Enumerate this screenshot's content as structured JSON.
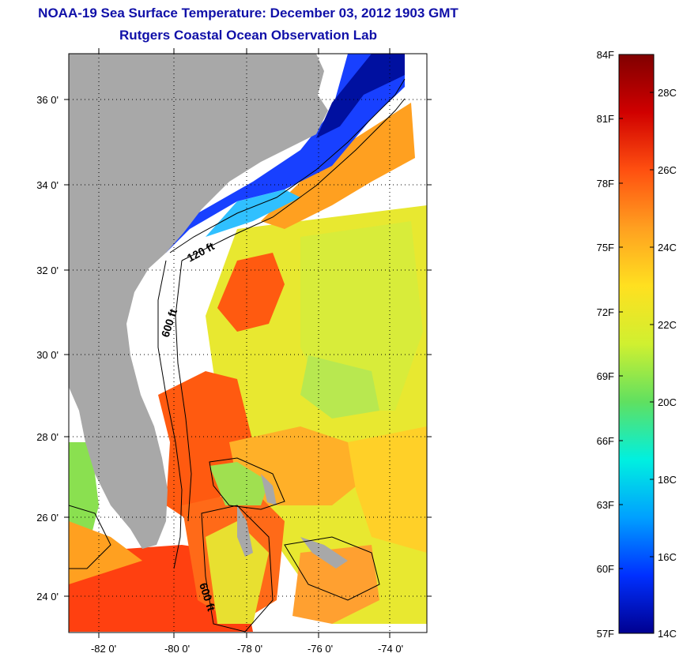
{
  "title": {
    "line1": "NOAA-19 Sea Surface Temperature:  December 03, 2012 1903 GMT",
    "line2": "Rutgers Coastal Ocean Observation Lab"
  },
  "map": {
    "lat_labels": [
      "36 0'",
      "34 0'",
      "32 0'",
      "30 0'",
      "28 0'",
      "26 0'",
      "24 0'"
    ],
    "lon_labels": [
      "-82 0'",
      "-80 0'",
      "-78 0'",
      "-76 0'",
      "-74 0'"
    ],
    "lat_values": [
      36,
      34,
      32,
      30,
      28,
      26,
      24
    ],
    "lon_values": [
      -82,
      -80,
      -78,
      -76,
      -74
    ],
    "lat_range": [
      23,
      37
    ],
    "lon_range": [
      -83,
      -73
    ],
    "contour_labels": [
      "120 ft",
      "600 ft",
      "600 ft"
    ],
    "land_color": "#a8a8a8",
    "cloud_color": "#ffffff"
  },
  "colorbar": {
    "fahrenheit_labels": [
      "84F",
      "81F",
      "78F",
      "75F",
      "72F",
      "69F",
      "66F",
      "63F",
      "60F",
      "57F"
    ],
    "celsius_labels": [
      "28C",
      "26C",
      "24C",
      "22C",
      "20C",
      "18C",
      "16C",
      "14C"
    ],
    "colors": [
      "#000090",
      "#0030ff",
      "#00a0ff",
      "#00f0e0",
      "#60e060",
      "#d0f030",
      "#ffe020",
      "#ffa020",
      "#ff5010",
      "#d00000",
      "#800000"
    ]
  }
}
